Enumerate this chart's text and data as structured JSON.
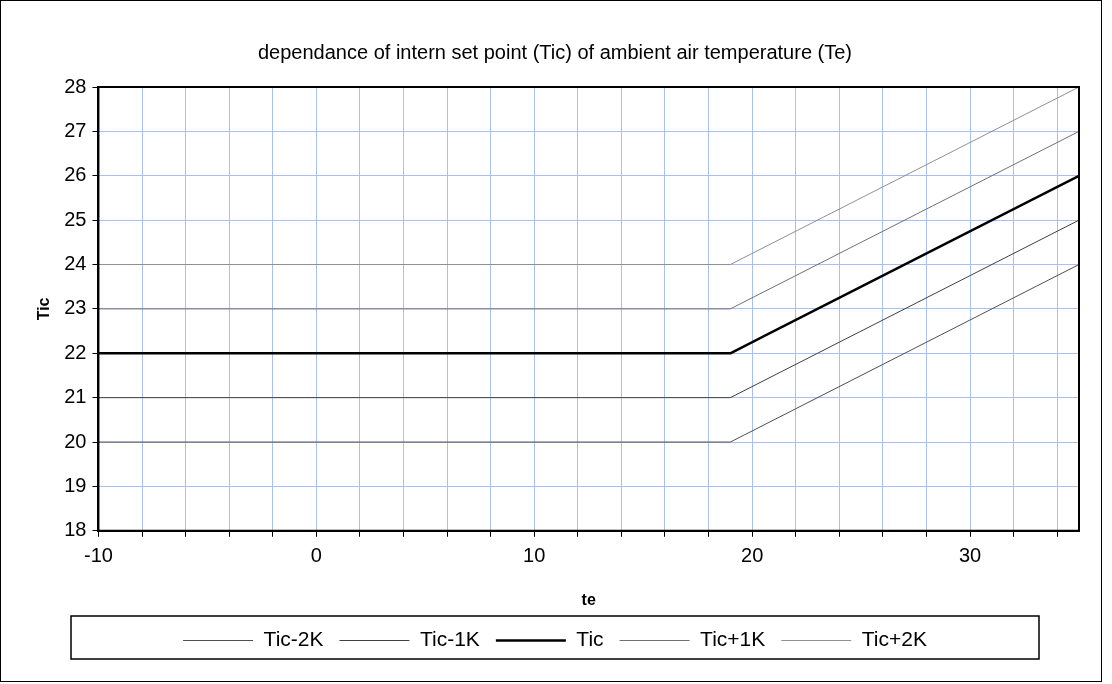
{
  "chart_data": {
    "type": "line",
    "title": "dependance of intern set point (Tic) of ambient air temperature (Te)",
    "xlabel": "te",
    "ylabel": "Tic",
    "x": [
      -10,
      19,
      35
    ],
    "series": [
      {
        "name": "Tic-2K",
        "color": "#505050",
        "values": [
          20,
          20,
          24
        ]
      },
      {
        "name": "Tic-1K",
        "color": "#404040",
        "values": [
          21,
          21,
          25
        ]
      },
      {
        "name": "Tic",
        "color": "#000000",
        "values": [
          22,
          22,
          26
        ]
      },
      {
        "name": "Tic+1K",
        "color": "#707070",
        "values": [
          23,
          23,
          27
        ]
      },
      {
        "name": "Tic+2K",
        "color": "#909090",
        "values": [
          24,
          24,
          28
        ]
      }
    ],
    "xlim": [
      -10,
      35
    ],
    "xticks": [
      -10,
      {
        "value": -8,
        "label": null
      },
      {
        "value": -6,
        "label": null
      },
      {
        "value": -4,
        "label": null
      },
      {
        "value": -2,
        "label": null
      },
      0,
      {
        "value": 2,
        "label": null
      },
      {
        "value": 4,
        "label": null
      },
      {
        "value": 6,
        "label": null
      },
      {
        "value": 8,
        "label": null
      },
      10,
      {
        "value": 12,
        "label": null
      },
      {
        "value": 14,
        "label": null
      },
      {
        "value": 16,
        "label": null
      },
      {
        "value": 18,
        "label": null
      },
      20,
      {
        "value": 22,
        "label": null
      },
      {
        "value": 24,
        "label": null
      },
      {
        "value": 26,
        "label": null
      },
      {
        "value": 28,
        "label": null
      },
      30,
      {
        "value": 32,
        "label": null
      },
      {
        "value": 34,
        "label": null
      }
    ],
    "ylim": [
      18,
      28
    ],
    "yticks": [
      18,
      19,
      20,
      21,
      22,
      23,
      24,
      25,
      26,
      27,
      28
    ],
    "grid": true,
    "legend": "bottom",
    "marker": "none",
    "line_style": "solid"
  }
}
